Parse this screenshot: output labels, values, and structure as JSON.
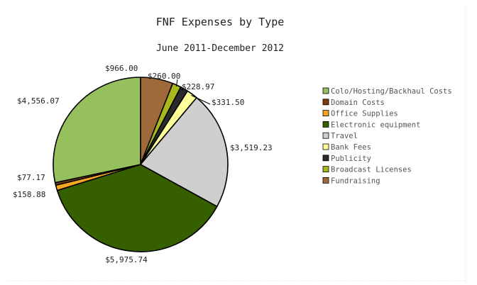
{
  "chart_data": {
    "type": "pie",
    "title": "FNF Expenses by Type",
    "subtitle": "June 2011-December 2012",
    "legend_position": "right",
    "slices": [
      {
        "name": "Fundraising",
        "value": 966.0,
        "label": "$966.00",
        "color": "#a0693a"
      },
      {
        "name": "Broadcast Licenses",
        "value": 260.0,
        "label": "$260.00",
        "color": "#a8b81c"
      },
      {
        "name": "Publicity",
        "value": 228.97,
        "label": "$228.97",
        "color": "#2a2a2a"
      },
      {
        "name": "Bank Fees",
        "value": 331.5,
        "label": "$331.50",
        "color": "#ffff99"
      },
      {
        "name": "Travel",
        "value": 3519.23,
        "label": "$3,519.23",
        "color": "#cfcfcf"
      },
      {
        "name": "Electronic equipment",
        "value": 5975.74,
        "label": "$5,975.74",
        "color": "#365f00"
      },
      {
        "name": "Office Supplies",
        "value": 158.88,
        "label": "$158.88",
        "color": "#f5a623"
      },
      {
        "name": "Domain Costs",
        "value": 77.17,
        "label": "$77.17",
        "color": "#7a3e10"
      },
      {
        "name": "Colo/Hosting/Backhaul Costs",
        "value": 4556.07,
        "label": "$4,556.07",
        "color": "#96bf5e"
      }
    ],
    "legend": [
      "Colo/Hosting/Backhaul Costs",
      "Domain Costs",
      "Office Supplies",
      "Electronic equipment",
      "Travel",
      "Bank Fees",
      "Publicity",
      "Broadcast Licenses",
      "Fundraising"
    ]
  }
}
